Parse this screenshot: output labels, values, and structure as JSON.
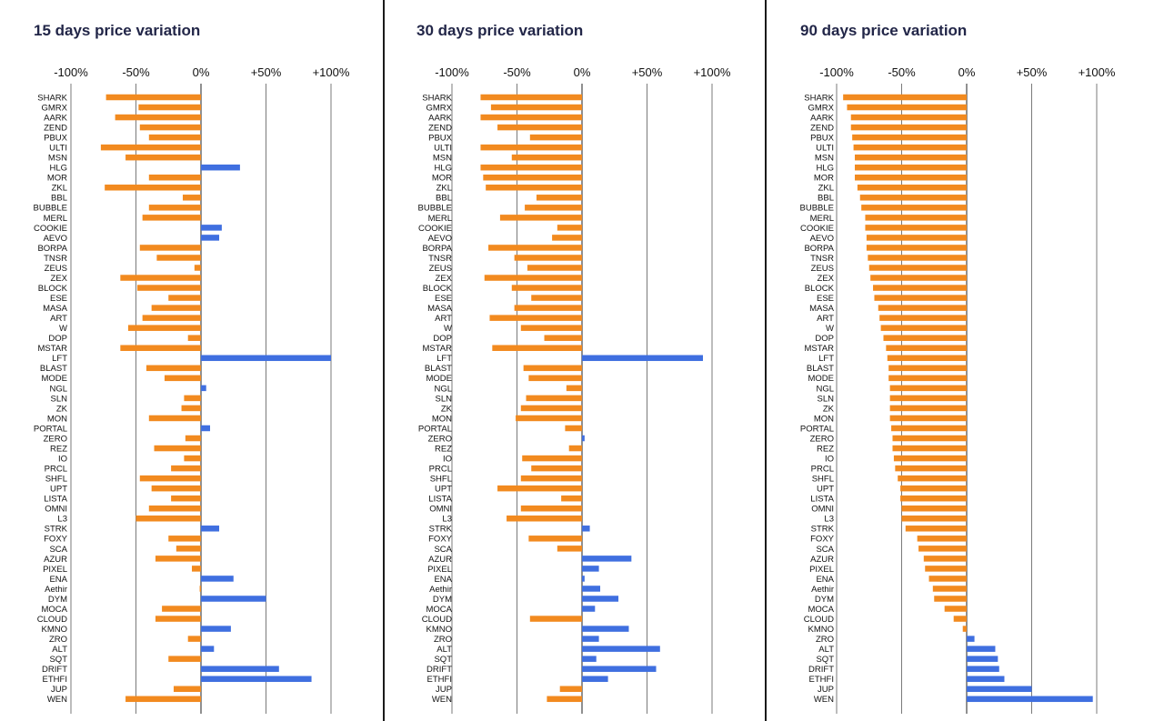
{
  "colors": {
    "negative": "#f28a1f",
    "positive": "#3f6fe0",
    "grid": "#222222",
    "title": "#222648"
  },
  "categories": [
    "SHARK",
    "GMRX",
    "AARK",
    "ZEND",
    "PBUX",
    "ULTI",
    "MSN",
    "HLG",
    "MOR",
    "ZKL",
    "BBL",
    "BUBBLE",
    "MERL",
    "COOKIE",
    "AEVO",
    "BORPA",
    "TNSR",
    "ZEUS",
    "ZEX",
    "BLOCK",
    "ESE",
    "MASA",
    "ART",
    "W",
    "DOP",
    "MSTAR",
    "LFT",
    "BLAST",
    "MODE",
    "NGL",
    "SLN",
    "ZK",
    "MON",
    "PORTAL",
    "ZERO",
    "REZ",
    "IO",
    "PRCL",
    "SHFL",
    "UPT",
    "LISTA",
    "OMNI",
    "L3",
    "STRK",
    "FOXY",
    "SCA",
    "AZUR",
    "PIXEL",
    "ENA",
    "Aethir",
    "DYM",
    "MOCA",
    "CLOUD",
    "KMNO",
    "ZRO",
    "ALT",
    "SQT",
    "DRIFT",
    "ETHFI",
    "JUP",
    "WEN"
  ],
  "chart_data": [
    {
      "type": "bar",
      "orientation": "horizontal",
      "title": "15 days price variation",
      "xlim": [
        -100,
        100
      ],
      "tick_values": [
        -100,
        -50,
        0,
        50,
        100
      ],
      "tick_labels": [
        "-100%",
        "-50%",
        "0%",
        "+50%",
        "+100%"
      ],
      "grid": true,
      "values": [
        -73,
        -48,
        -66,
        -47,
        -40,
        -77,
        -58,
        30,
        -40,
        -74,
        -14,
        -40,
        -45,
        16,
        14,
        -47,
        -34,
        -5,
        -62,
        -49,
        -25,
        -38,
        -45,
        -56,
        -10,
        -62,
        100,
        -42,
        -28,
        4,
        -13,
        -15,
        -40,
        7,
        -12,
        -36,
        -13,
        -23,
        -47,
        -38,
        -23,
        -40,
        -50,
        14,
        -25,
        -19,
        -35,
        -7,
        25,
        -1,
        50,
        -30,
        -35,
        23,
        -10,
        10,
        -25,
        60,
        85,
        -21,
        -58
      ]
    },
    {
      "type": "bar",
      "orientation": "horizontal",
      "title": "30 days price variation",
      "xlim": [
        -100,
        100
      ],
      "tick_values": [
        -100,
        -50,
        0,
        50,
        100
      ],
      "tick_labels": [
        "-100%",
        "-50%",
        "0%",
        "+50%",
        "+100%"
      ],
      "grid": true,
      "values": [
        -78,
        -70,
        -78,
        -65,
        -40,
        -78,
        -54,
        -78,
        -76,
        -74,
        -35,
        -44,
        -63,
        -19,
        -23,
        -72,
        -52,
        -42,
        -75,
        -54,
        -39,
        -52,
        -71,
        -47,
        -29,
        -69,
        93,
        -45,
        -41,
        -12,
        -43,
        -47,
        -51,
        -13,
        2,
        -10,
        -46,
        -39,
        -47,
        -65,
        -16,
        -47,
        -58,
        6,
        -41,
        -19,
        38,
        13,
        2,
        14,
        28,
        10,
        -40,
        36,
        13,
        60,
        11,
        57,
        20,
        -17,
        -27
      ]
    },
    {
      "type": "bar",
      "orientation": "horizontal",
      "title": "90 days price variation",
      "xlim": [
        -100,
        100
      ],
      "tick_values": [
        -100,
        -50,
        0,
        50,
        100
      ],
      "tick_labels": [
        "-100%",
        "-50%",
        "0%",
        "+50%",
        "+100%"
      ],
      "grid": true,
      "values": [
        -95,
        -92,
        -89,
        -89,
        -88,
        -87,
        -86,
        -86,
        -86,
        -84,
        -82,
        -81,
        -78,
        -78,
        -77,
        -77,
        -76,
        -75,
        -74,
        -72,
        -71,
        -68,
        -67,
        -66,
        -64,
        -62,
        -61,
        -60,
        -60,
        -59,
        -59,
        -59,
        -59,
        -58,
        -57,
        -57,
        -56,
        -55,
        -53,
        -51,
        -51,
        -50,
        -50,
        -47,
        -38,
        -37,
        -33,
        -32,
        -29,
        -26,
        -25,
        -17,
        -10,
        -3,
        6,
        22,
        24,
        25,
        29,
        50,
        97
      ]
    }
  ]
}
